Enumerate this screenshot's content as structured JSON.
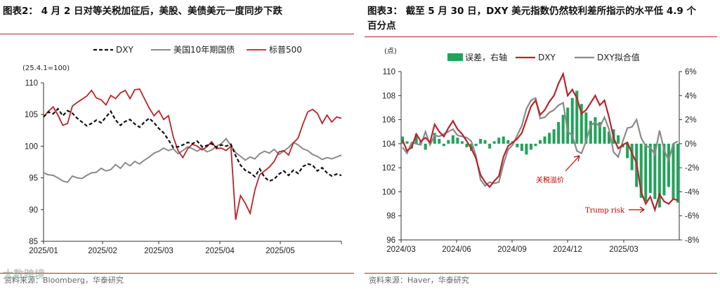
{
  "left": {
    "title": "图表2： 4 月 2 日对等关税加征后，美股、美债美元一度同步下跌",
    "unit": "(25.4.1=100)",
    "source": "资料来源：Bloomberg，华泰研究",
    "chart_data": {
      "type": "line",
      "ylim": [
        85,
        110
      ],
      "yticks": [
        85,
        90,
        95,
        100,
        105,
        110
      ],
      "xticks": [
        "2025/01",
        "2025/02",
        "2025/03",
        "2025/04",
        "2025/05"
      ],
      "legend": "top",
      "colors": {
        "DXY": "#111111",
        "UST10": "#8a8a8a",
        "SPX": "#b8242a"
      },
      "series": [
        {
          "name": "DXY",
          "values": [
            104.6,
            105.4,
            105.1,
            105.9,
            104.8,
            105.6,
            105.2,
            104.4,
            103.8,
            103.2,
            103.6,
            104.1,
            103.7,
            104.6,
            105.5,
            104.1,
            103.3,
            103.9,
            104.2,
            103.5,
            103.0,
            103.8,
            104.4,
            103.7,
            102.8,
            102.1,
            101.0,
            99.8,
            99.9,
            100.2,
            100.6,
            100.4,
            100.8,
            99.9,
            100.1,
            100.4,
            99.8,
            100.2,
            100.0,
            100.3,
            98.5,
            97.0,
            96.2,
            95.8,
            95.2,
            96.4,
            95.1,
            94.5,
            94.8,
            95.6,
            96.1,
            95.4,
            96.2,
            95.7,
            96.8,
            97.2,
            97.0,
            96.1,
            96.6,
            95.8,
            95.3,
            95.6,
            95.4
          ]
        },
        {
          "name": "美国10年期国债",
          "values": [
            95.8,
            95.5,
            95.4,
            95.0,
            94.5,
            94.3,
            95.3,
            95.0,
            94.9,
            95.4,
            95.8,
            95.9,
            96.5,
            96.1,
            96.3,
            97.1,
            96.5,
            97.4,
            96.9,
            97.6,
            97.2,
            97.8,
            98.3,
            98.9,
            99.2,
            99.7,
            99.3,
            99.6,
            98.8,
            99.3,
            99.9,
            99.6,
            99.2,
            99.7,
            99.1,
            99.4,
            100.0,
            100.4,
            101.2,
            100.1,
            99.0,
            98.4,
            97.8,
            98.3,
            98.0,
            98.8,
            99.2,
            98.9,
            99.5,
            98.7,
            99.2,
            99.8,
            100.6,
            100.2,
            99.6,
            99.3,
            98.7,
            98.4,
            97.9,
            98.2,
            98.0,
            98.3,
            98.6
          ]
        },
        {
          "name": "标普500",
          "values": [
            104.6,
            105.5,
            106.2,
            104.9,
            103.3,
            103.6,
            106.3,
            106.9,
            107.4,
            107.9,
            108.8,
            107.6,
            107.3,
            106.5,
            108.0,
            107.5,
            108.4,
            108.8,
            107.5,
            108.9,
            109.0,
            107.5,
            106.0,
            104.8,
            105.6,
            104.2,
            104.8,
            101.5,
            99.3,
            98.2,
            99.6,
            100.3,
            100.0,
            99.4,
            99.9,
            100.7,
            99.6,
            99.7,
            99.3,
            100.0,
            88.4,
            92.2,
            91.0,
            89.4,
            93.1,
            95.5,
            96.1,
            96.7,
            97.6,
            99.1,
            99.3,
            98.6,
            100.5,
            101.3,
            103.5,
            105.4,
            105.8,
            105.2,
            103.6,
            104.9,
            103.8,
            104.6,
            104.4
          ]
        }
      ]
    }
  },
  "right": {
    "title": "图表3： 截至 5 月 30 日，DXY 美元指数仍然较利差所指示的水平低 4.9 个百分点",
    "unit": "(点)",
    "source": "资料来源：Haver，华泰研究",
    "chart_data": {
      "type": "bar+line",
      "ylim": [
        96,
        110
      ],
      "y2lim": [
        -8,
        6
      ],
      "yticks": [
        96,
        98,
        100,
        102,
        104,
        106,
        108,
        110
      ],
      "y2ticks": [
        "-8%",
        "-6%",
        "-4%",
        "-2%",
        "0%",
        "2%",
        "4%",
        "6%"
      ],
      "xticks": [
        "2024/03",
        "2024/06",
        "2024/09",
        "2024/12",
        "2025/03"
      ],
      "legend": "top",
      "colors": {
        "spread": "#22a35a",
        "DXY": "#b8242a",
        "fit": "#8a8a8a"
      },
      "annotations": [
        "关税溢价",
        "Trump risk"
      ],
      "series": [
        {
          "name": "误差，右轴",
          "axis": "right",
          "values": [
            0.6,
            0.2,
            -0.4,
            0.8,
            0.3,
            -0.5,
            0.2,
            0.9,
            0.4,
            -0.2,
            0.3,
            0.7,
            0.5,
            0.2,
            -0.3,
            -0.6,
            -0.2,
            0.4,
            0.3,
            -0.4,
            0.2,
            0.5,
            0.6,
            0.3,
            0.2,
            -0.3,
            -0.6,
            -0.9,
            -0.5,
            -0.2,
            0.3,
            0.6,
            0.9,
            1.2,
            1.8,
            2.4,
            3.0,
            3.8,
            4.4,
            3.3,
            2.6,
            1.9,
            2.2,
            1.8,
            1.4,
            1.0,
            1.2,
            0.7,
            -0.3,
            -1.2,
            -2.2,
            -3.6,
            -4.5,
            -4.8,
            -4.1,
            -4.6,
            -5.3,
            -4.3,
            -3.6,
            -4.6,
            -4.9
          ]
        },
        {
          "name": "DXY",
          "axis": "left",
          "values": [
            104.3,
            103.4,
            103.7,
            104.8,
            104.2,
            104.5,
            104.1,
            105.6,
            105.0,
            104.6,
            105.3,
            105.9,
            105.2,
            104.8,
            104.2,
            103.6,
            102.8,
            101.4,
            100.8,
            100.4,
            100.9,
            101.3,
            102.9,
            103.8,
            104.1,
            104.4,
            104.9,
            106.0,
            107.1,
            107.6,
            106.4,
            106.8,
            107.5,
            108.0,
            109.0,
            109.8,
            108.0,
            108.5,
            107.8,
            106.5,
            106.8,
            107.4,
            108.0,
            107.2,
            107.6,
            106.2,
            104.5,
            103.6,
            103.9,
            104.1,
            103.2,
            102.4,
            100.0,
            99.0,
            99.6,
            98.5,
            99.8,
            99.2,
            99.0,
            99.4,
            99.3
          ]
        },
        {
          "name": "DXY拟合值",
          "axis": "left",
          "values": [
            103.7,
            103.2,
            104.1,
            104.0,
            103.9,
            105.0,
            103.9,
            104.7,
            104.6,
            104.8,
            105.0,
            105.2,
            104.7,
            104.6,
            104.5,
            104.2,
            103.0,
            101.0,
            100.5,
            100.8,
            100.7,
            100.8,
            102.3,
            103.5,
            103.9,
            104.7,
            105.5,
            106.9,
            107.6,
            107.8,
            106.1,
            106.2,
            106.6,
            106.8,
            107.2,
            107.4,
            105.0,
            104.7,
            103.4,
            103.2,
            104.2,
            105.5,
            105.8,
            105.4,
            106.2,
            105.2,
            103.3,
            102.9,
            104.2,
            105.3,
            105.4,
            106.0,
            104.5,
            103.8,
            103.7,
            103.1,
            105.1,
            103.5,
            102.6,
            104.0,
            104.2
          ]
        }
      ]
    }
  },
  "watermark": "大数跨境"
}
